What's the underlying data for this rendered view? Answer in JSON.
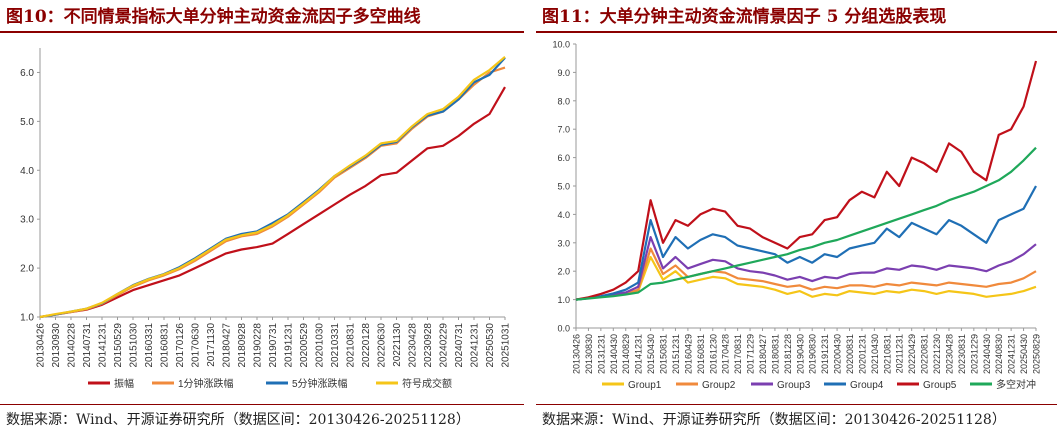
{
  "left": {
    "title": "图10：不同情景指标大单分钟主动资金流因子多空曲线",
    "source": "数据来源：Wind、开源证券研究所（数据区间：20130426-20251128）"
  },
  "right": {
    "title": "图11：大单分钟主动资金流情景因子 5 分组选股表现",
    "source": "数据来源：Wind、开源证券研究所（数据区间：20130426-20251128）"
  },
  "chart_data": [
    {
      "type": "line",
      "title": "图10：不同情景指标大单分钟主动资金流因子多空曲线",
      "xlabel": "",
      "ylabel": "",
      "ylim": [
        1.0,
        6.5
      ],
      "yticks": [
        "1.0",
        "2.0",
        "3.0",
        "4.0",
        "5.0",
        "6.0"
      ],
      "x_tick_labels": [
        "20130426",
        "20130930",
        "20140228",
        "20140731",
        "20141231",
        "20150529",
        "20151030",
        "20160331",
        "20160831",
        "20170126",
        "20170630",
        "20171130",
        "20180427",
        "20180928",
        "20190228",
        "20190731",
        "20191231",
        "20200529",
        "20201030",
        "20210331",
        "20210831",
        "20220128",
        "20220630",
        "20221130",
        "20230428",
        "20230928",
        "20240229",
        "20240731",
        "20241231",
        "20250530",
        "20251031"
      ],
      "legend_position": "bottom",
      "grid": false,
      "series": [
        {
          "name": "振幅",
          "color": "#c0101a",
          "values": [
            1.0,
            1.05,
            1.1,
            1.15,
            1.25,
            1.4,
            1.55,
            1.65,
            1.75,
            1.85,
            2.0,
            2.15,
            2.3,
            2.38,
            2.43,
            2.5,
            2.7,
            2.9,
            3.1,
            3.3,
            3.5,
            3.68,
            3.9,
            3.95,
            4.2,
            4.45,
            4.5,
            4.7,
            4.95,
            5.15,
            5.7
          ]
        },
        {
          "name": "1分钟涨跌幅",
          "color": "#f08a3c",
          "values": [
            1.0,
            1.05,
            1.1,
            1.16,
            1.27,
            1.45,
            1.62,
            1.75,
            1.85,
            1.98,
            2.15,
            2.35,
            2.55,
            2.65,
            2.7,
            2.85,
            3.05,
            3.3,
            3.55,
            3.85,
            4.05,
            4.25,
            4.5,
            4.55,
            4.85,
            5.1,
            5.2,
            5.45,
            5.75,
            6.0,
            6.1
          ]
        },
        {
          "name": "5分钟涨跌幅",
          "color": "#1f6fb5",
          "values": [
            1.0,
            1.05,
            1.11,
            1.17,
            1.28,
            1.47,
            1.65,
            1.78,
            1.88,
            2.02,
            2.2,
            2.4,
            2.6,
            2.7,
            2.75,
            2.92,
            3.1,
            3.35,
            3.6,
            3.88,
            4.08,
            4.28,
            4.52,
            4.58,
            4.88,
            5.12,
            5.2,
            5.45,
            5.8,
            5.95,
            6.3
          ]
        },
        {
          "name": "符号成交额",
          "color": "#f5c518",
          "values": [
            1.0,
            1.06,
            1.11,
            1.17,
            1.29,
            1.47,
            1.64,
            1.77,
            1.87,
            2.0,
            2.18,
            2.38,
            2.58,
            2.67,
            2.73,
            2.88,
            3.08,
            3.32,
            3.58,
            3.88,
            4.1,
            4.3,
            4.55,
            4.6,
            4.9,
            5.15,
            5.25,
            5.5,
            5.85,
            6.05,
            6.32
          ]
        }
      ]
    },
    {
      "type": "line",
      "title": "图11：大单分钟主动资金流情景因子 5 分组选股表现",
      "xlabel": "",
      "ylabel": "",
      "ylim": [
        0.0,
        10.0
      ],
      "yticks": [
        "0.0",
        "1.0",
        "2.0",
        "3.0",
        "4.0",
        "5.0",
        "6.0",
        "7.0",
        "8.0",
        "9.0",
        "10.0"
      ],
      "x_tick_labels": [
        "20130426",
        "20130830",
        "20131231",
        "20140430",
        "20140829",
        "20141231",
        "20150430",
        "20150831",
        "20151231",
        "20160429",
        "20160831",
        "20161230",
        "20170428",
        "20170831",
        "20171229",
        "20180427",
        "20180831",
        "20181228",
        "20190430",
        "20190830",
        "20191231",
        "20200430",
        "20200831",
        "20201231",
        "20210430",
        "20210831",
        "20211231",
        "20220429",
        "20220831",
        "20221230",
        "20230428",
        "20230831",
        "20231229",
        "20240430",
        "20240830",
        "20241231",
        "20250430",
        "20250829"
      ],
      "legend_position": "bottom",
      "grid": false,
      "series": [
        {
          "name": "Group1",
          "color": "#f5c518",
          "values": [
            1.0,
            1.05,
            1.1,
            1.15,
            1.2,
            1.3,
            2.5,
            1.7,
            2.0,
            1.6,
            1.7,
            1.8,
            1.75,
            1.55,
            1.5,
            1.45,
            1.35,
            1.2,
            1.3,
            1.1,
            1.2,
            1.15,
            1.3,
            1.25,
            1.2,
            1.3,
            1.25,
            1.35,
            1.3,
            1.2,
            1.3,
            1.25,
            1.2,
            1.1,
            1.15,
            1.2,
            1.3,
            1.45
          ]
        },
        {
          "name": "Group2",
          "color": "#f08a3c",
          "values": [
            1.0,
            1.05,
            1.1,
            1.15,
            1.2,
            1.35,
            2.8,
            1.9,
            2.2,
            1.8,
            1.9,
            2.0,
            1.95,
            1.75,
            1.7,
            1.65,
            1.55,
            1.45,
            1.5,
            1.35,
            1.45,
            1.4,
            1.5,
            1.5,
            1.45,
            1.55,
            1.5,
            1.6,
            1.55,
            1.5,
            1.6,
            1.55,
            1.5,
            1.45,
            1.55,
            1.6,
            1.75,
            2.0
          ]
        },
        {
          "name": "Group3",
          "color": "#7b3fb0",
          "values": [
            1.0,
            1.05,
            1.1,
            1.18,
            1.25,
            1.45,
            3.2,
            2.1,
            2.5,
            2.1,
            2.25,
            2.4,
            2.35,
            2.1,
            2.0,
            1.95,
            1.85,
            1.7,
            1.8,
            1.65,
            1.8,
            1.75,
            1.9,
            1.95,
            1.95,
            2.1,
            2.05,
            2.2,
            2.15,
            2.05,
            2.2,
            2.15,
            2.1,
            2.0,
            2.2,
            2.35,
            2.6,
            2.95
          ]
        },
        {
          "name": "Group4",
          "color": "#1f6fb5",
          "values": [
            1.0,
            1.05,
            1.12,
            1.22,
            1.35,
            1.6,
            3.8,
            2.5,
            3.2,
            2.8,
            3.1,
            3.3,
            3.2,
            2.9,
            2.8,
            2.7,
            2.6,
            2.3,
            2.5,
            2.3,
            2.6,
            2.5,
            2.8,
            2.9,
            3.0,
            3.5,
            3.2,
            3.7,
            3.5,
            3.3,
            3.8,
            3.6,
            3.3,
            3.0,
            3.8,
            4.0,
            4.2,
            5.0
          ]
        },
        {
          "name": "Group5",
          "color": "#c0101a",
          "values": [
            1.0,
            1.08,
            1.2,
            1.35,
            1.6,
            2.0,
            4.5,
            3.0,
            3.8,
            3.6,
            4.0,
            4.2,
            4.1,
            3.6,
            3.5,
            3.2,
            3.0,
            2.8,
            3.2,
            3.3,
            3.8,
            3.9,
            4.5,
            4.8,
            4.6,
            5.5,
            5.0,
            6.0,
            5.8,
            5.5,
            6.5,
            6.2,
            5.5,
            5.2,
            6.8,
            7.0,
            7.8,
            9.4
          ]
        },
        {
          "name": "多空对冲",
          "color": "#1fa85a",
          "values": [
            1.0,
            1.04,
            1.08,
            1.12,
            1.18,
            1.25,
            1.55,
            1.6,
            1.7,
            1.8,
            1.9,
            2.0,
            2.1,
            2.2,
            2.3,
            2.4,
            2.5,
            2.6,
            2.75,
            2.85,
            3.0,
            3.1,
            3.25,
            3.4,
            3.55,
            3.7,
            3.85,
            4.0,
            4.15,
            4.3,
            4.5,
            4.65,
            4.8,
            5.0,
            5.2,
            5.5,
            5.9,
            6.35
          ]
        }
      ]
    }
  ]
}
